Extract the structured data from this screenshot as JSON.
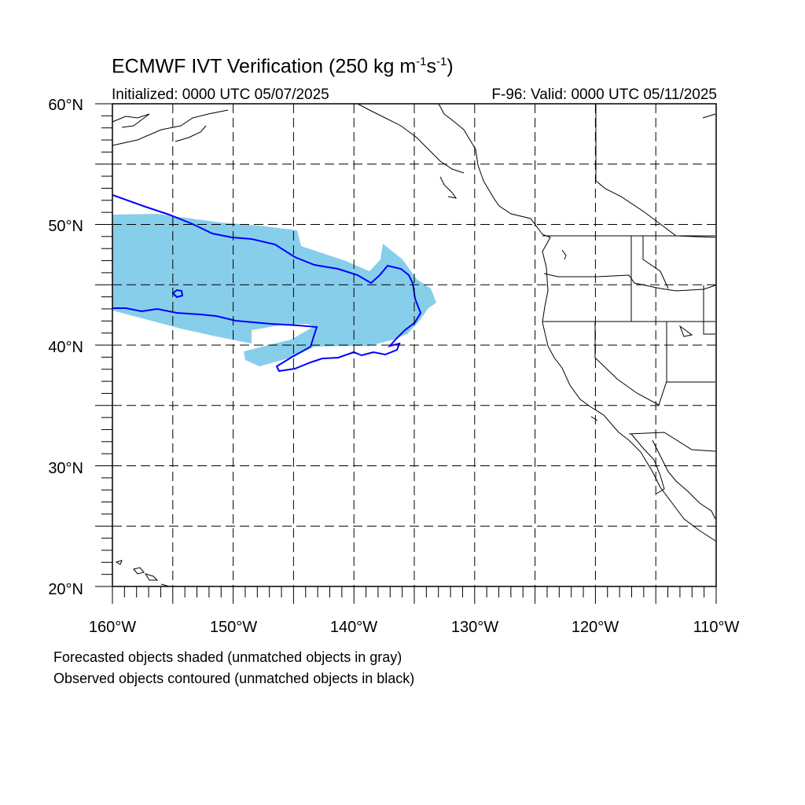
{
  "map": {
    "title_main": "ECMWF IVT Verification (250 kg m",
    "title_sup1": "-1",
    "title_mid": "s",
    "title_sup2": "-1",
    "title_end": ")",
    "initialized": "Initialized: 0000 UTC 05/07/2025",
    "valid": "F-96: Valid: 0000 UTC 05/11/2025",
    "lat_labels": [
      "60°N",
      "50°N",
      "40°N",
      "30°N",
      "20°N"
    ],
    "lon_labels": [
      "160°W",
      "150°W",
      "140°W",
      "130°W",
      "120°W",
      "110°W"
    ],
    "extent": {
      "lon": [
        -160,
        -110
      ],
      "lat": [
        20,
        60
      ]
    },
    "footer_line1": "Forecasted objects shaded (unmatched objects in gray)",
    "footer_line2": "Observed objects contoured (unmatched objects in black)",
    "colors": {
      "forecast_fill": "#87ceeb",
      "observed_contour": "#0000ff",
      "coastline": "#000000",
      "grid": "#000000"
    }
  }
}
